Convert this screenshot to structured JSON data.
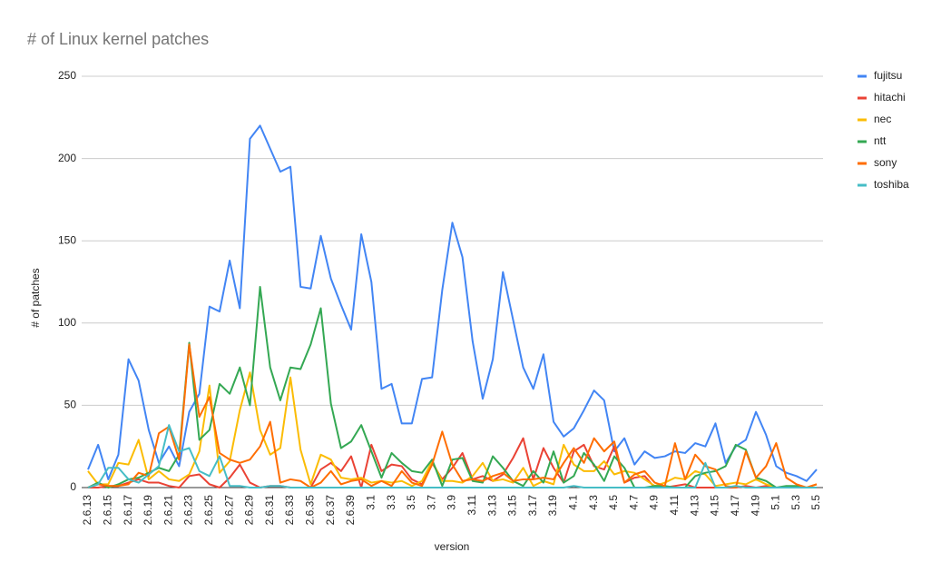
{
  "chart_data": {
    "type": "line",
    "title": "# of Linux kernel patches",
    "x_label": "version",
    "y_label": "# of patches",
    "categories": [
      "2.6.13",
      null,
      "2.6.15",
      null,
      "2.6.17",
      null,
      "2.6.19",
      null,
      "2.6.21",
      null,
      "2.6.23",
      null,
      "2.6.25",
      null,
      "2.6.27",
      null,
      "2.6.29",
      null,
      "2.6.31",
      null,
      "2.6.33",
      null,
      "2.6.35",
      null,
      "2.6.37",
      null,
      "2.6.39",
      null,
      "3.1",
      null,
      "3.3",
      null,
      "3.5",
      null,
      "3.7",
      null,
      "3.9",
      null,
      "3.11",
      null,
      "3.13",
      null,
      "3.15",
      null,
      "3.17",
      null,
      "3.19",
      null,
      "4.1",
      null,
      "4.3",
      null,
      "4.5",
      null,
      "4.7",
      null,
      "4.9",
      null,
      "4.11",
      null,
      "4.13",
      null,
      "4.15",
      null,
      "4.17",
      null,
      "4.19",
      null,
      "5.1",
      null,
      "5.3",
      null,
      "5.5"
    ],
    "series": [
      {
        "name": "fujitsu",
        "color": "#4285f4",
        "values": [
          11,
          26,
          5,
          20,
          78,
          65,
          35,
          15,
          25,
          13,
          46,
          57,
          110,
          107,
          138,
          109,
          212,
          220,
          206,
          192,
          195,
          122,
          121,
          153,
          127,
          111,
          96,
          154,
          125,
          60,
          63,
          39,
          39,
          66,
          67,
          120,
          161,
          140,
          89,
          54,
          78,
          131,
          102,
          73,
          60,
          81,
          40,
          31,
          36,
          47,
          59,
          53,
          22,
          30,
          14,
          22,
          18,
          19,
          22,
          21,
          27,
          25,
          39,
          15,
          25,
          29,
          46,
          32,
          13,
          9,
          7,
          4,
          11
        ]
      },
      {
        "name": "hitachi",
        "color": "#ea4335",
        "values": [
          0,
          0,
          1,
          1,
          3,
          5,
          3,
          3,
          1,
          0,
          7,
          8,
          2,
          0,
          6,
          14,
          3,
          0,
          1,
          1,
          0,
          0,
          0,
          11,
          15,
          10,
          19,
          0,
          26,
          10,
          14,
          13,
          5,
          2,
          15,
          5,
          12,
          21,
          5,
          7,
          4,
          8,
          18,
          30,
          5,
          24,
          12,
          3,
          22,
          26,
          13,
          11,
          25,
          3,
          6,
          7,
          0,
          0,
          1,
          2,
          0,
          0,
          0,
          0,
          0,
          1,
          0,
          1,
          0,
          0,
          0,
          0,
          0
        ]
      },
      {
        "name": "nec",
        "color": "#fbbc04",
        "values": [
          10,
          2,
          2,
          15,
          14,
          29,
          5,
          10,
          5,
          4,
          8,
          22,
          62,
          9,
          16,
          47,
          70,
          35,
          20,
          24,
          67,
          23,
          2,
          20,
          17,
          6,
          5,
          6,
          3,
          4,
          3,
          4,
          1,
          4,
          16,
          4,
          4,
          3,
          7,
          15,
          4,
          5,
          3,
          12,
          1,
          4,
          2,
          26,
          14,
          10,
          10,
          16,
          8,
          10,
          9,
          5,
          1,
          3,
          6,
          5,
          10,
          8,
          1,
          2,
          3,
          2,
          5,
          2,
          0,
          0,
          0,
          0,
          2
        ]
      },
      {
        "name": "ntt",
        "color": "#34a853",
        "values": [
          0,
          3,
          0,
          2,
          5,
          6,
          9,
          12,
          10,
          20,
          88,
          29,
          35,
          63,
          57,
          73,
          50,
          122,
          73,
          53,
          73,
          72,
          87,
          109,
          51,
          24,
          28,
          38,
          22,
          6,
          21,
          15,
          10,
          9,
          17,
          1,
          17,
          18,
          4,
          3,
          19,
          12,
          4,
          1,
          10,
          3,
          22,
          3,
          7,
          21,
          14,
          4,
          19,
          12,
          0,
          0,
          1,
          1,
          0,
          0,
          7,
          9,
          10,
          13,
          26,
          23,
          6,
          4,
          0,
          1,
          1,
          0,
          0
        ]
      },
      {
        "name": "sony",
        "color": "#ff6d01",
        "values": [
          0,
          2,
          1,
          1,
          2,
          9,
          7,
          33,
          37,
          17,
          87,
          43,
          55,
          21,
          17,
          15,
          17,
          25,
          40,
          3,
          5,
          4,
          0,
          3,
          10,
          2,
          4,
          5,
          1,
          4,
          1,
          10,
          3,
          1,
          14,
          34,
          14,
          4,
          5,
          4,
          7,
          9,
          4,
          5,
          5,
          6,
          5,
          15,
          24,
          15,
          30,
          22,
          28,
          3,
          8,
          10,
          3,
          1,
          27,
          5,
          20,
          13,
          11,
          1,
          0,
          22,
          6,
          13,
          27,
          6,
          2,
          0,
          2
        ]
      },
      {
        "name": "toshiba",
        "color": "#46bdc6",
        "values": [
          0,
          2,
          12,
          12,
          5,
          3,
          8,
          13,
          38,
          22,
          24,
          10,
          7,
          19,
          1,
          1,
          0,
          0,
          1,
          1,
          0,
          0,
          0,
          0,
          0,
          0,
          0,
          0,
          0,
          0,
          0,
          0,
          0,
          0,
          0,
          0,
          0,
          0,
          0,
          0,
          0,
          0,
          0,
          0,
          0,
          0,
          0,
          0,
          1,
          0,
          0,
          0,
          0,
          0,
          0,
          0,
          0,
          0,
          0,
          0,
          0,
          15,
          0,
          0,
          1,
          0,
          0,
          0,
          0,
          0,
          0,
          0,
          0
        ]
      }
    ],
    "ylim": [
      0,
      250
    ],
    "yticks": [
      0,
      50,
      100,
      150,
      200,
      250
    ],
    "grid": true,
    "legend": "right"
  }
}
